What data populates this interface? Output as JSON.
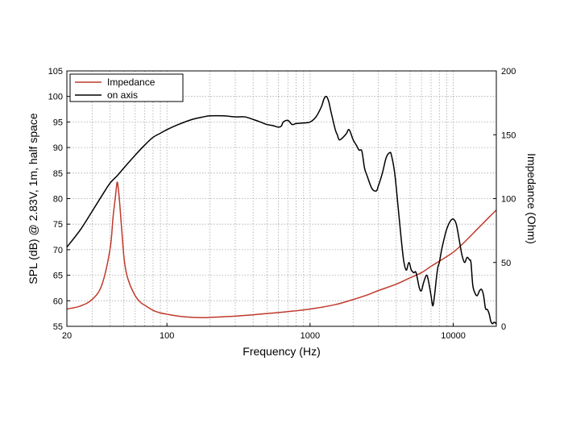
{
  "chart_data": {
    "type": "line",
    "xlabel": "Frequency (Hz)",
    "ylabel": "SPL (dB) @ 2.83V, 1m, half space",
    "y2label": "Impedance (Ohm)",
    "x_scale": "log",
    "xlim": [
      20,
      20000
    ],
    "ylim": [
      55,
      105
    ],
    "y2lim": [
      0,
      200
    ],
    "x_ticks": [
      {
        "value": 20,
        "label": "20"
      },
      {
        "value": 100,
        "label": "100"
      },
      {
        "value": 1000,
        "label": "1000"
      },
      {
        "value": 10000,
        "label": "10000"
      }
    ],
    "y_ticks": [
      {
        "value": 55,
        "label": "55"
      },
      {
        "value": 60,
        "label": "60"
      },
      {
        "value": 65,
        "label": "65"
      },
      {
        "value": 70,
        "label": "70"
      },
      {
        "value": 75,
        "label": "75"
      },
      {
        "value": 80,
        "label": "80"
      },
      {
        "value": 85,
        "label": "85"
      },
      {
        "value": 90,
        "label": "90"
      },
      {
        "value": 95,
        "label": "95"
      },
      {
        "value": 100,
        "label": "100"
      },
      {
        "value": 105,
        "label": "105"
      }
    ],
    "y2_ticks": [
      {
        "value": 0,
        "label": "0"
      },
      {
        "value": 50,
        "label": "50"
      },
      {
        "value": 100,
        "label": "100"
      },
      {
        "value": 150,
        "label": "150"
      },
      {
        "value": 200,
        "label": "200"
      }
    ],
    "grid": true,
    "legend_position": "top-left",
    "series": [
      {
        "name": "Impedance",
        "axis": "right",
        "color": "#c0392b",
        "points": [
          [
            20,
            13.5
          ],
          [
            25,
            16
          ],
          [
            30,
            21
          ],
          [
            35,
            32
          ],
          [
            40,
            60
          ],
          [
            42,
            85
          ],
          [
            43.5,
            100
          ],
          [
            44.5,
            110
          ],
          [
            45,
            113
          ],
          [
            45.5,
            110
          ],
          [
            46.5,
            100
          ],
          [
            48,
            80
          ],
          [
            50,
            55
          ],
          [
            52,
            42
          ],
          [
            55,
            33
          ],
          [
            60,
            24
          ],
          [
            65,
            19
          ],
          [
            70,
            16.5
          ],
          [
            80,
            12.5
          ],
          [
            90,
            10.5
          ],
          [
            100,
            9.5
          ],
          [
            120,
            8
          ],
          [
            150,
            7
          ],
          [
            180,
            6.8
          ],
          [
            200,
            7
          ],
          [
            250,
            7.5
          ],
          [
            300,
            8
          ],
          [
            400,
            9
          ],
          [
            500,
            10
          ],
          [
            700,
            11.5
          ],
          [
            1000,
            13.5
          ],
          [
            1500,
            17
          ],
          [
            2000,
            21
          ],
          [
            2500,
            24.5
          ],
          [
            3000,
            28
          ],
          [
            4000,
            33
          ],
          [
            5000,
            38
          ],
          [
            6000,
            42
          ],
          [
            7000,
            47
          ],
          [
            8000,
            51
          ],
          [
            10000,
            58
          ],
          [
            12000,
            66
          ],
          [
            15000,
            77
          ],
          [
            18000,
            86
          ],
          [
            20000,
            91
          ]
        ]
      },
      {
        "name": "on axis",
        "axis": "left",
        "color": "#000000",
        "points": [
          [
            20,
            70.5
          ],
          [
            25,
            74
          ],
          [
            30,
            77.5
          ],
          [
            35,
            80.5
          ],
          [
            40,
            83
          ],
          [
            45,
            84.5
          ],
          [
            50,
            86
          ],
          [
            60,
            88.5
          ],
          [
            70,
            90.5
          ],
          [
            80,
            92
          ],
          [
            90,
            92.8
          ],
          [
            100,
            93.5
          ],
          [
            120,
            94.5
          ],
          [
            150,
            95.5
          ],
          [
            180,
            96
          ],
          [
            200,
            96.2
          ],
          [
            250,
            96.2
          ],
          [
            300,
            96
          ],
          [
            350,
            96
          ],
          [
            400,
            95.5
          ],
          [
            450,
            95
          ],
          [
            500,
            94.5
          ],
          [
            550,
            94.3
          ],
          [
            600,
            94
          ],
          [
            630,
            94.2
          ],
          [
            650,
            95
          ],
          [
            700,
            95.3
          ],
          [
            750,
            94.5
          ],
          [
            800,
            94.7
          ],
          [
            900,
            94.8
          ],
          [
            1000,
            95
          ],
          [
            1100,
            96
          ],
          [
            1200,
            98
          ],
          [
            1250,
            99.5
          ],
          [
            1300,
            100
          ],
          [
            1350,
            99
          ],
          [
            1400,
            97
          ],
          [
            1500,
            93.5
          ],
          [
            1550,
            92.5
          ],
          [
            1600,
            91.5
          ],
          [
            1700,
            92
          ],
          [
            1800,
            92.8
          ],
          [
            1850,
            93.5
          ],
          [
            1900,
            93.2
          ],
          [
            2000,
            91.5
          ],
          [
            2100,
            90.5
          ],
          [
            2200,
            89.5
          ],
          [
            2300,
            89.3
          ],
          [
            2400,
            86
          ],
          [
            2500,
            84.5
          ],
          [
            2700,
            82
          ],
          [
            2900,
            81.5
          ],
          [
            3000,
            82.5
          ],
          [
            3200,
            85
          ],
          [
            3400,
            88
          ],
          [
            3600,
            89
          ],
          [
            3700,
            88.5
          ],
          [
            3900,
            85
          ],
          [
            4100,
            79
          ],
          [
            4300,
            73
          ],
          [
            4500,
            68
          ],
          [
            4700,
            66
          ],
          [
            4900,
            67.5
          ],
          [
            5100,
            66
          ],
          [
            5300,
            65.5
          ],
          [
            5500,
            65.5
          ],
          [
            5800,
            62.5
          ],
          [
            6000,
            62
          ],
          [
            6200,
            63.5
          ],
          [
            6500,
            65
          ],
          [
            6700,
            64
          ],
          [
            7000,
            61
          ],
          [
            7200,
            59
          ],
          [
            7400,
            61
          ],
          [
            7600,
            64
          ],
          [
            7800,
            66.5
          ],
          [
            8000,
            67.5
          ],
          [
            8300,
            70
          ],
          [
            8700,
            72.5
          ],
          [
            9000,
            74
          ],
          [
            9500,
            75.5
          ],
          [
            10000,
            76
          ],
          [
            10500,
            75
          ],
          [
            11000,
            72
          ],
          [
            11500,
            69
          ],
          [
            12000,
            67.5
          ],
          [
            12500,
            68.5
          ],
          [
            13000,
            68
          ],
          [
            13300,
            67.5
          ],
          [
            13700,
            63
          ],
          [
            14200,
            61.5
          ],
          [
            14700,
            61
          ],
          [
            15300,
            62
          ],
          [
            15800,
            62.2
          ],
          [
            16300,
            61
          ],
          [
            16800,
            58.5
          ],
          [
            17300,
            58.3
          ],
          [
            17800,
            57.5
          ],
          [
            18300,
            56
          ],
          [
            18800,
            55.5
          ],
          [
            19300,
            55.8
          ],
          [
            20000,
            55.5
          ]
        ]
      }
    ]
  }
}
